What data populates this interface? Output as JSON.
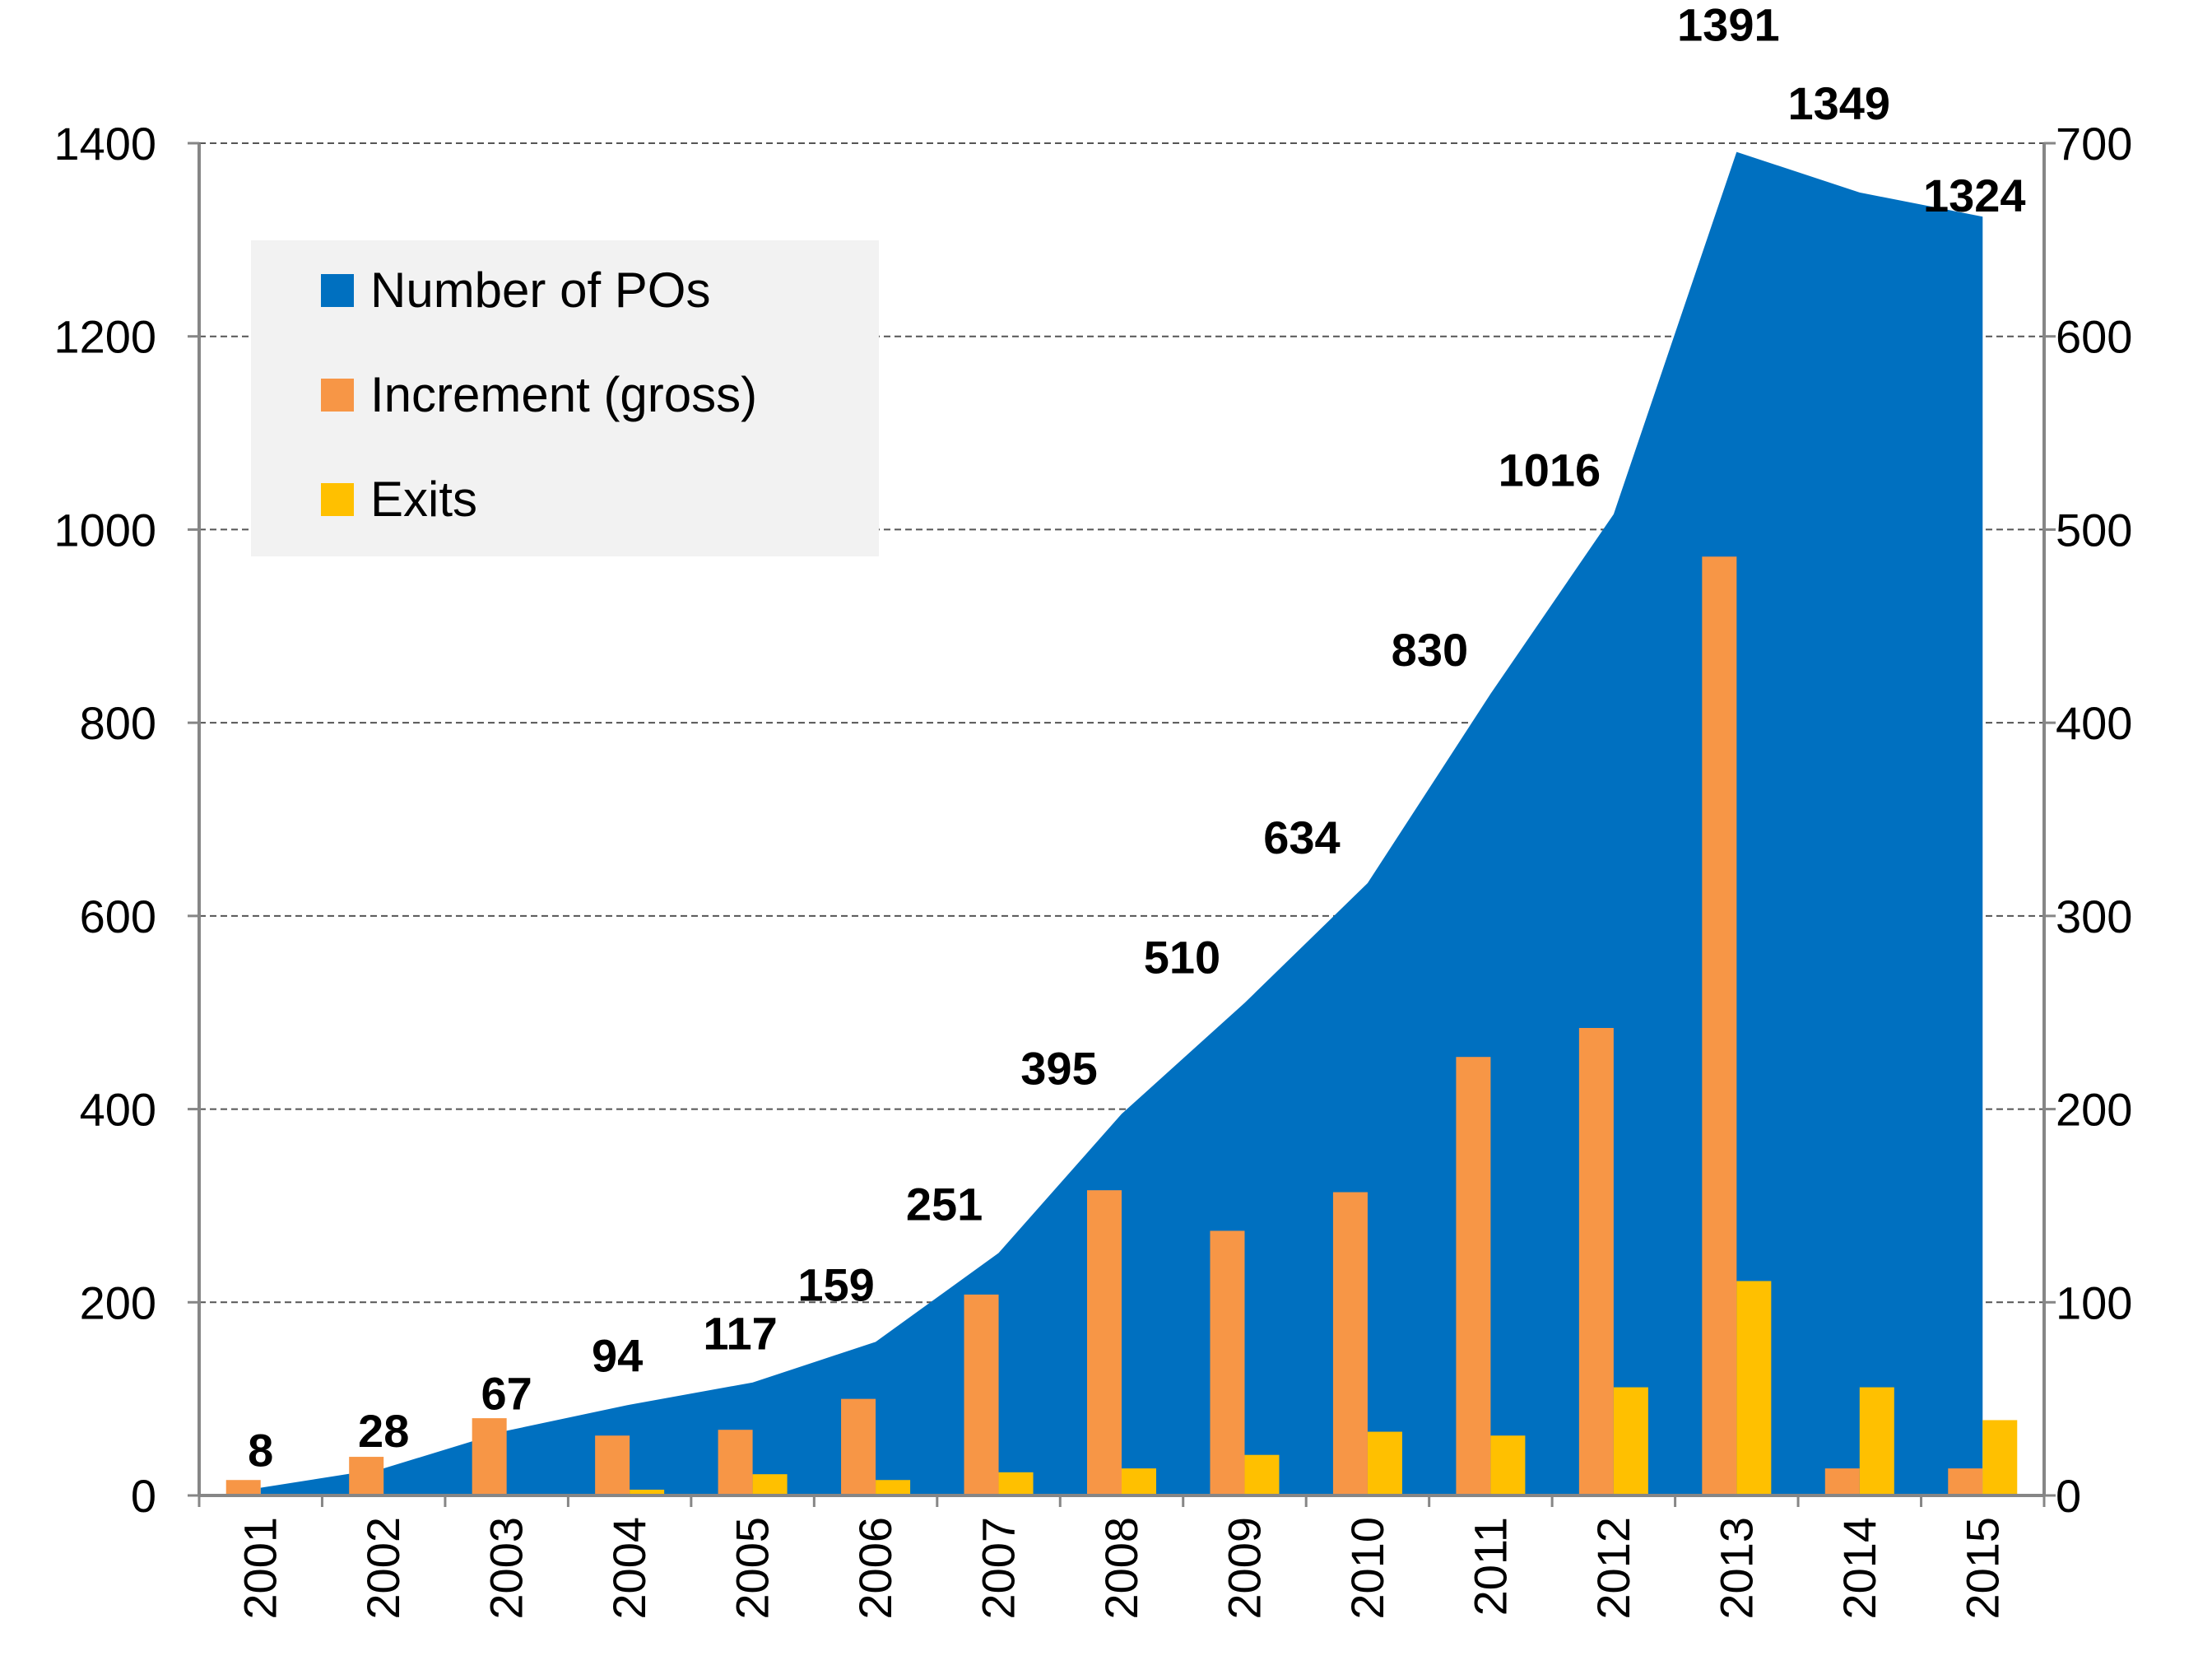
{
  "chart_data": {
    "type": "area+bar",
    "title": "",
    "categories": [
      "2001",
      "2002",
      "2003",
      "2004",
      "2005",
      "2006",
      "2007",
      "2008",
      "2009",
      "2010",
      "2011",
      "2012",
      "2013",
      "2014",
      "2015"
    ],
    "series": [
      {
        "name": "Number of POs",
        "kind": "area",
        "axis": "left",
        "color": "#0070C0",
        "values": [
          8,
          28,
          67,
          94,
          117,
          159,
          251,
          395,
          510,
          634,
          830,
          1016,
          1391,
          1349,
          1324
        ]
      },
      {
        "name": "Increment (gross)",
        "kind": "bar",
        "axis": "right",
        "color": "#F79646",
        "values": [
          8,
          20,
          40,
          31,
          34,
          50,
          104,
          158,
          137,
          157,
          227,
          242,
          486,
          14,
          14
        ]
      },
      {
        "name": "Exits",
        "kind": "bar",
        "axis": "right",
        "color": "#FFC000",
        "values": [
          0,
          0,
          0,
          3,
          11,
          8,
          12,
          14,
          21,
          33,
          31,
          56,
          111,
          56,
          39
        ]
      }
    ],
    "left_axis": {
      "ylim": [
        0,
        1400
      ],
      "ticks": [
        "0",
        "200",
        "400",
        "600",
        "800",
        "1000",
        "1200",
        "1400"
      ]
    },
    "right_axis": {
      "ylim": [
        0,
        700
      ],
      "ticks": [
        "0",
        "100",
        "200",
        "300",
        "400",
        "500",
        "600",
        "700"
      ]
    },
    "data_labels": [
      "8",
      "28",
      "67",
      "94",
      "117",
      "159",
      "251",
      "395",
      "510",
      "634",
      "830",
      "1016",
      "1391",
      "1349",
      "1324"
    ],
    "legend": {
      "placement": "top-left",
      "entries": [
        "Number of POs",
        "Increment (gross)",
        "Exits"
      ]
    },
    "grid": true
  }
}
